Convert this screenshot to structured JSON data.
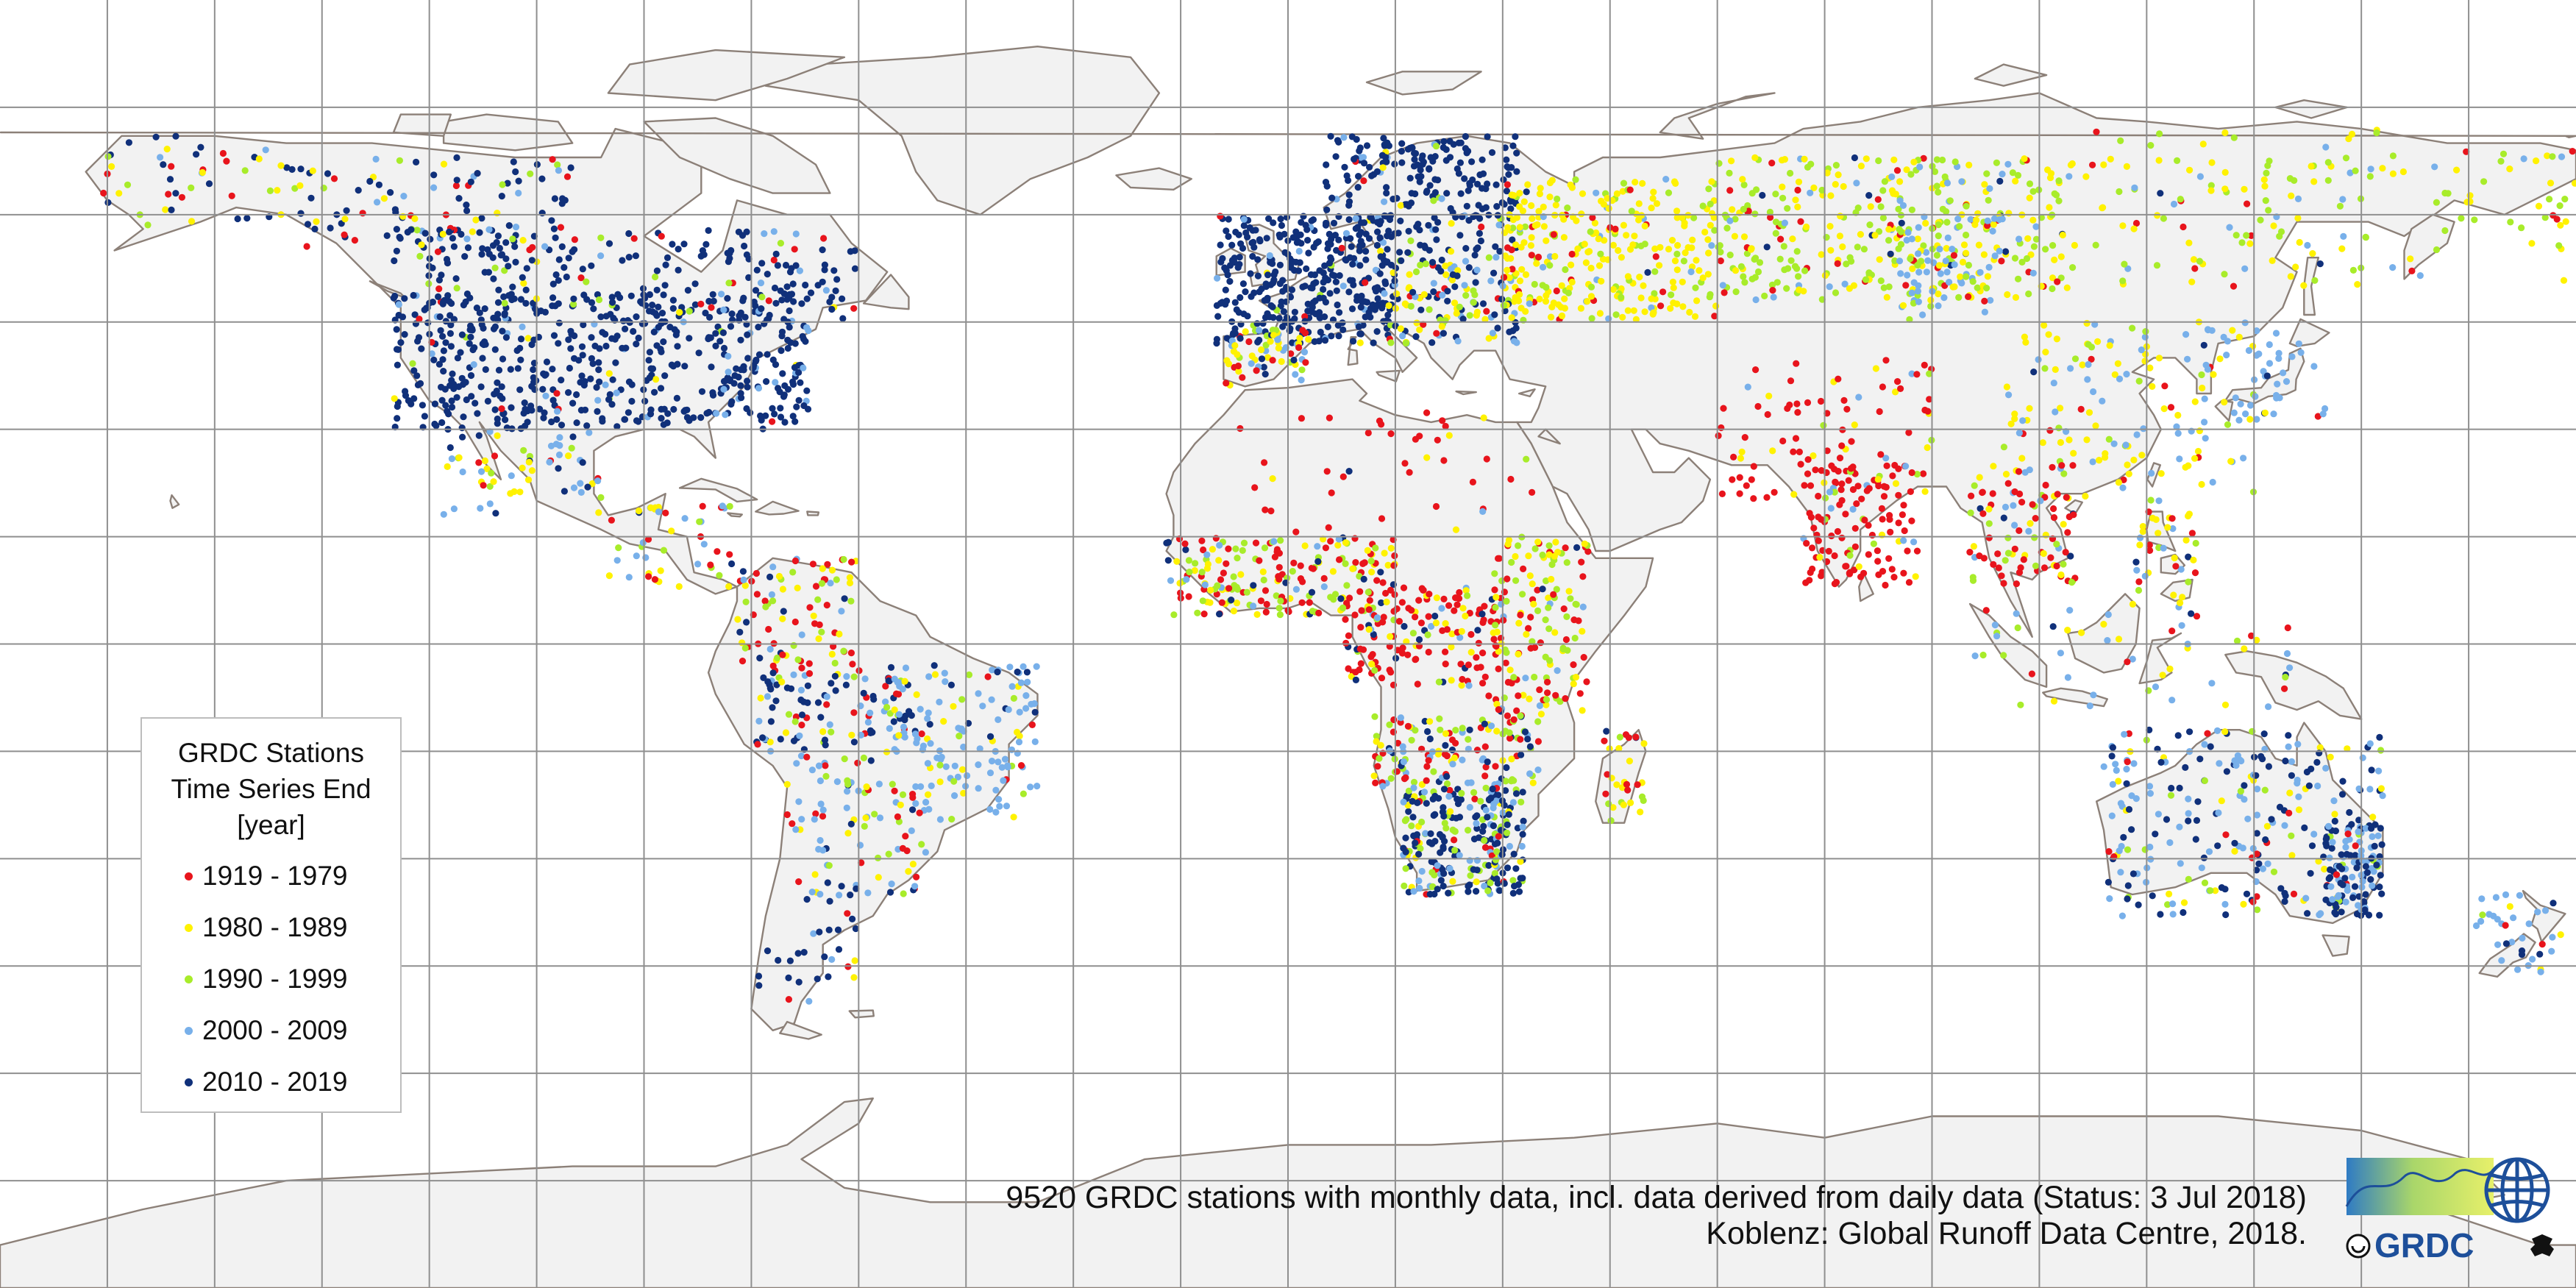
{
  "legend": {
    "title_lines": [
      "GRDC Stations",
      "Time Series End",
      "[year]"
    ],
    "classes": [
      {
        "label": "1919 - 1979",
        "color": "#e8141c"
      },
      {
        "label": "1980 - 1989",
        "color": "#fff200"
      },
      {
        "label": "1990 - 1999",
        "color": "#a8ec2a"
      },
      {
        "label": "2000 - 2009",
        "color": "#78b0ea"
      },
      {
        "label": "2010 - 2019",
        "color": "#10307a"
      }
    ]
  },
  "caption": {
    "line1": "9520 GRDC stations with monthly data, incl. data derived from daily data (Status: 3 Jul 2018)",
    "line2": "Koblenz: Global Runoff Data Centre, 2018."
  },
  "logo": {
    "text": "GRDC",
    "icon": "grdc-globe-logo-icon"
  },
  "map": {
    "projection": "plate-carree",
    "graticule_step_deg": 15,
    "colors": {
      "land": "#f2f2f2",
      "coast": "#8c8078",
      "grid": "#8f8f8f",
      "background": "#ffffff"
    }
  }
}
